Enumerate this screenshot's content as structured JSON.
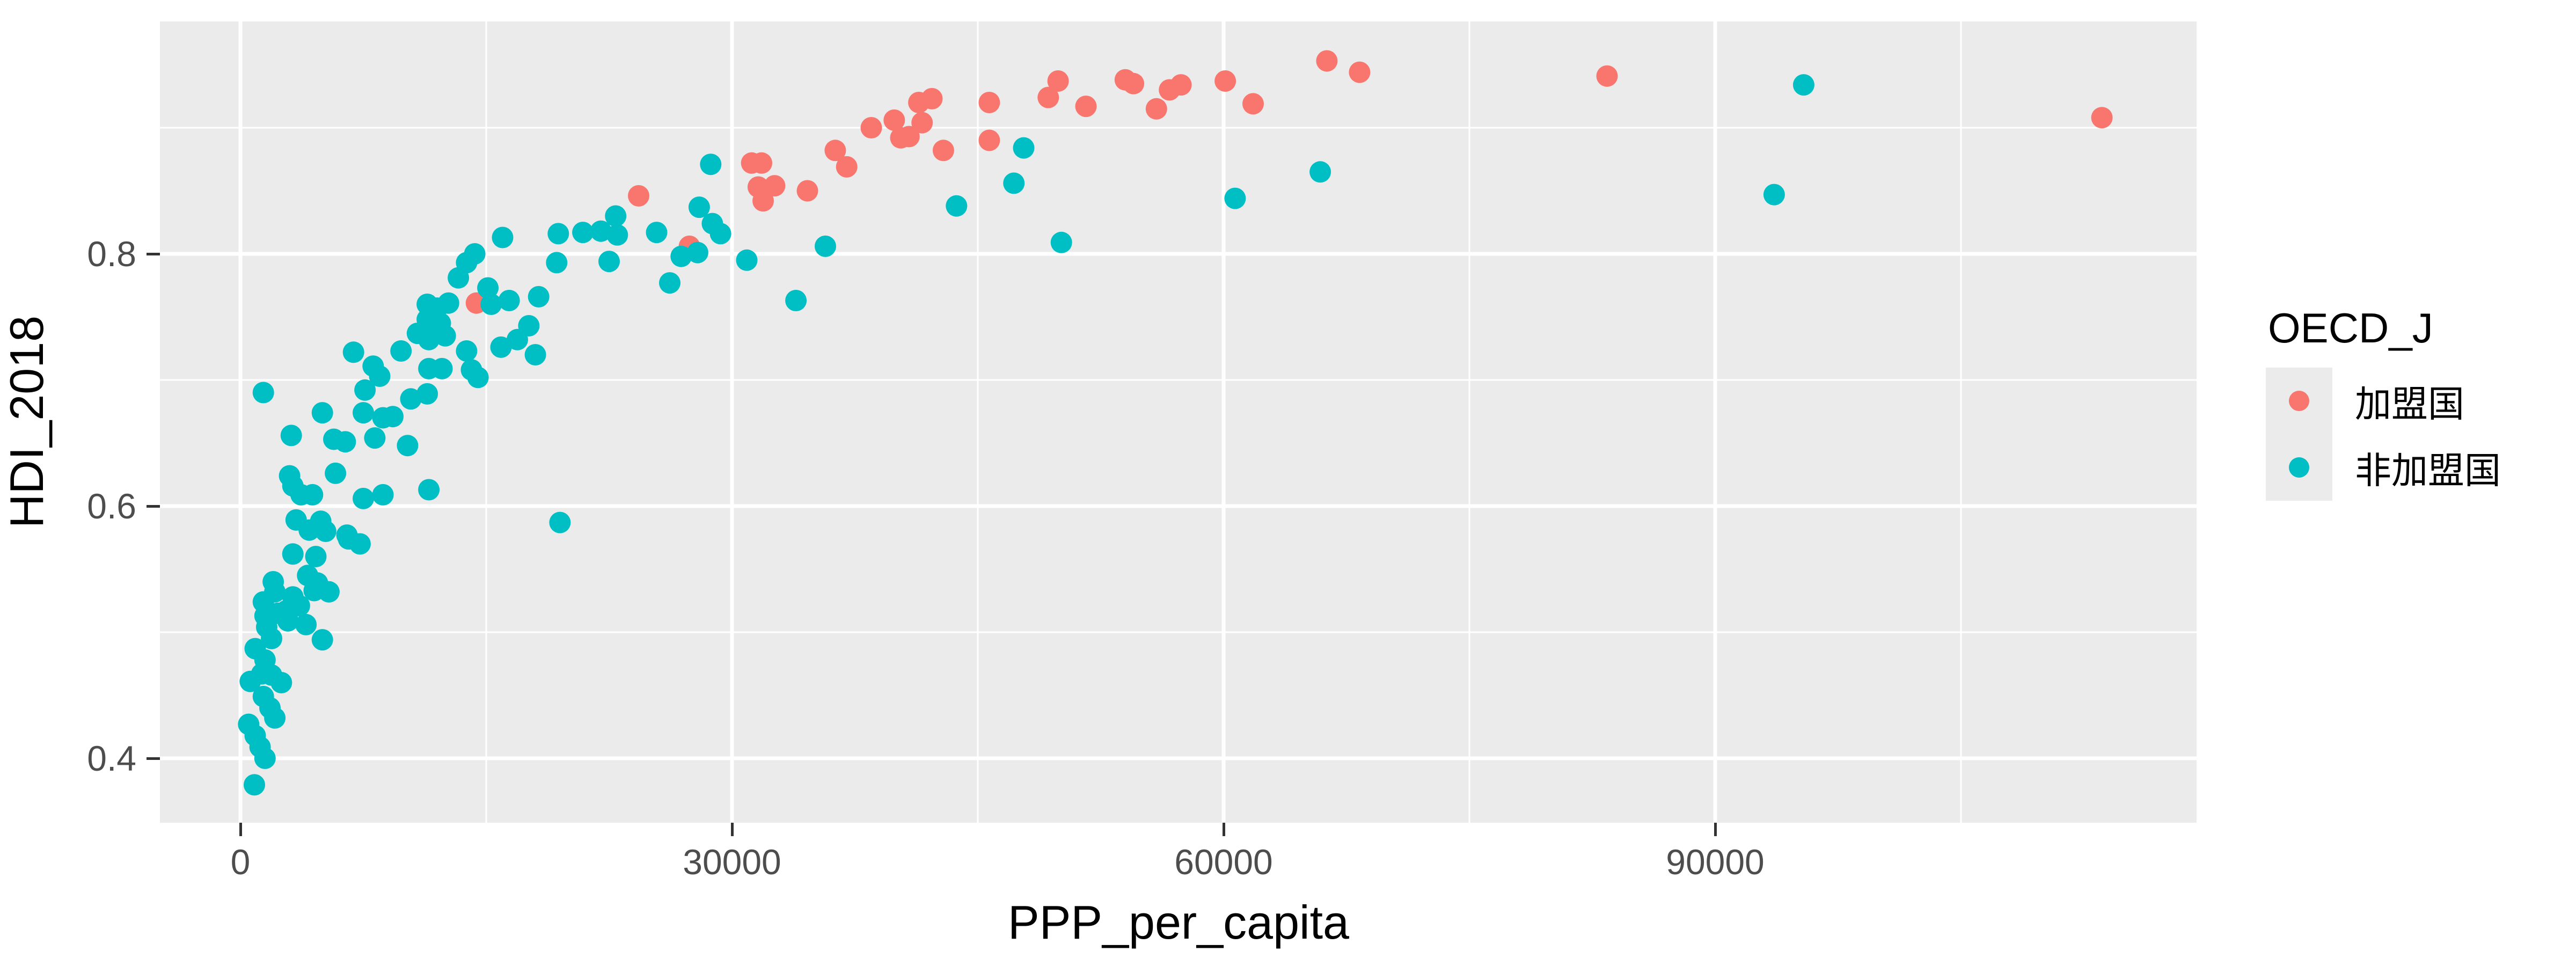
{
  "figure": {
    "background": "#FFFFFF",
    "panel_background": "#EBEBEB",
    "gridline_color": "#FFFFFF",
    "tick_mark_color": "#333333",
    "tick_label_color": "#4D4D4D",
    "axis_title_color": "#000000"
  },
  "chart_data": {
    "type": "scatter",
    "title": "",
    "xlabel": "PPP_per_capita",
    "ylabel": "HDI_2018",
    "xlim": [
      -4900,
      119400
    ],
    "ylim": [
      0.349,
      0.984
    ],
    "x_ticks": [
      0,
      30000,
      60000,
      90000
    ],
    "x_tick_labels": [
      "0",
      "30000",
      "60000",
      "90000"
    ],
    "y_ticks": [
      0.4,
      0.6,
      0.8
    ],
    "y_tick_labels": [
      "0.4",
      "0.6",
      "0.8"
    ],
    "x_minor_ticks": [
      15000,
      45000,
      75000,
      105000
    ],
    "y_minor_ticks": [
      0.5,
      0.7,
      0.9
    ],
    "grid": true,
    "legend_position": "right",
    "legend_title": "OECD_J",
    "point_radius_px": 20,
    "series": [
      {
        "name": "加盟国",
        "color": "#F8766D",
        "points": [
          [
            14400,
            0.761
          ],
          [
            24300,
            0.846
          ],
          [
            27400,
            0.806
          ],
          [
            31200,
            0.872
          ],
          [
            31800,
            0.872
          ],
          [
            31600,
            0.853
          ],
          [
            32600,
            0.854
          ],
          [
            31900,
            0.842
          ],
          [
            34600,
            0.85
          ],
          [
            36300,
            0.882
          ],
          [
            37000,
            0.869
          ],
          [
            38500,
            0.9
          ],
          [
            39900,
            0.906
          ],
          [
            40300,
            0.892
          ],
          [
            40800,
            0.893
          ],
          [
            41400,
            0.92
          ],
          [
            41600,
            0.904
          ],
          [
            42200,
            0.923
          ],
          [
            42900,
            0.882
          ],
          [
            45700,
            0.92
          ],
          [
            45700,
            0.89
          ],
          [
            49300,
            0.924
          ],
          [
            49900,
            0.937
          ],
          [
            51600,
            0.917
          ],
          [
            54000,
            0.938
          ],
          [
            54500,
            0.935
          ],
          [
            55900,
            0.915
          ],
          [
            56700,
            0.93
          ],
          [
            57400,
            0.934
          ],
          [
            60100,
            0.937
          ],
          [
            61800,
            0.919
          ],
          [
            66300,
            0.953
          ],
          [
            68300,
            0.944
          ],
          [
            83400,
            0.941
          ],
          [
            113600,
            0.908
          ]
        ]
      },
      {
        "name": "非加盟国",
        "color": "#00BFC4",
        "points": [
          [
            850,
            0.379
          ],
          [
            1500,
            0.4
          ],
          [
            1200,
            0.409
          ],
          [
            900,
            0.418
          ],
          [
            500,
            0.427
          ],
          [
            2100,
            0.432
          ],
          [
            1800,
            0.44
          ],
          [
            1400,
            0.449
          ],
          [
            2500,
            0.46
          ],
          [
            600,
            0.461
          ],
          [
            1900,
            0.466
          ],
          [
            1300,
            0.467
          ],
          [
            1500,
            0.478
          ],
          [
            900,
            0.487
          ],
          [
            1900,
            0.495
          ],
          [
            5000,
            0.494
          ],
          [
            1600,
            0.504
          ],
          [
            4000,
            0.506
          ],
          [
            2900,
            0.509
          ],
          [
            1500,
            0.513
          ],
          [
            2300,
            0.515
          ],
          [
            2800,
            0.517
          ],
          [
            3600,
            0.521
          ],
          [
            1400,
            0.524
          ],
          [
            3200,
            0.528
          ],
          [
            2100,
            0.532
          ],
          [
            5400,
            0.532
          ],
          [
            4500,
            0.533
          ],
          [
            4700,
            0.539
          ],
          [
            2000,
            0.54
          ],
          [
            4100,
            0.545
          ],
          [
            3200,
            0.562
          ],
          [
            4600,
            0.56
          ],
          [
            6600,
            0.574
          ],
          [
            6500,
            0.577
          ],
          [
            7300,
            0.57
          ],
          [
            4200,
            0.581
          ],
          [
            5200,
            0.58
          ],
          [
            3400,
            0.589
          ],
          [
            4900,
            0.588
          ],
          [
            19500,
            0.587
          ],
          [
            3200,
            0.616
          ],
          [
            3700,
            0.609
          ],
          [
            4400,
            0.609
          ],
          [
            7500,
            0.606
          ],
          [
            8700,
            0.609
          ],
          [
            11500,
            0.613
          ],
          [
            3000,
            0.624
          ],
          [
            5800,
            0.626
          ],
          [
            3100,
            0.656
          ],
          [
            5700,
            0.653
          ],
          [
            6400,
            0.651
          ],
          [
            8200,
            0.654
          ],
          [
            10200,
            0.648
          ],
          [
            1400,
            0.69
          ],
          [
            5000,
            0.674
          ],
          [
            7500,
            0.674
          ],
          [
            8700,
            0.67
          ],
          [
            9300,
            0.671
          ],
          [
            7600,
            0.692
          ],
          [
            6900,
            0.722
          ],
          [
            8100,
            0.711
          ],
          [
            8500,
            0.703
          ],
          [
            9800,
            0.723
          ],
          [
            10400,
            0.685
          ],
          [
            11400,
            0.689
          ],
          [
            11500,
            0.709
          ],
          [
            12300,
            0.709
          ],
          [
            12500,
            0.735
          ],
          [
            11500,
            0.732
          ],
          [
            10800,
            0.737
          ],
          [
            11400,
            0.76
          ],
          [
            12000,
            0.757
          ],
          [
            11400,
            0.748
          ],
          [
            12200,
            0.745
          ],
          [
            12700,
            0.761
          ],
          [
            13800,
            0.723
          ],
          [
            14100,
            0.708
          ],
          [
            14500,
            0.702
          ],
          [
            15900,
            0.726
          ],
          [
            16900,
            0.732
          ],
          [
            18000,
            0.72
          ],
          [
            17600,
            0.743
          ],
          [
            13300,
            0.781
          ],
          [
            13800,
            0.793
          ],
          [
            14300,
            0.8
          ],
          [
            15100,
            0.773
          ],
          [
            15300,
            0.76
          ],
          [
            16400,
            0.763
          ],
          [
            18200,
            0.766
          ],
          [
            16000,
            0.813
          ],
          [
            19400,
            0.816
          ],
          [
            20900,
            0.817
          ],
          [
            22000,
            0.818
          ],
          [
            22900,
            0.83
          ],
          [
            23000,
            0.815
          ],
          [
            22500,
            0.794
          ],
          [
            19300,
            0.793
          ],
          [
            25400,
            0.817
          ],
          [
            26900,
            0.798
          ],
          [
            26200,
            0.777
          ],
          [
            28000,
            0.837
          ],
          [
            28800,
            0.824
          ],
          [
            29300,
            0.816
          ],
          [
            27900,
            0.801
          ],
          [
            28700,
            0.871
          ],
          [
            30900,
            0.795
          ],
          [
            35700,
            0.806
          ],
          [
            43700,
            0.838
          ],
          [
            33900,
            0.763
          ],
          [
            47800,
            0.884
          ],
          [
            47200,
            0.856
          ],
          [
            50100,
            0.809
          ],
          [
            60700,
            0.844
          ],
          [
            65900,
            0.865
          ],
          [
            93600,
            0.847
          ],
          [
            95400,
            0.934
          ]
        ]
      }
    ]
  }
}
